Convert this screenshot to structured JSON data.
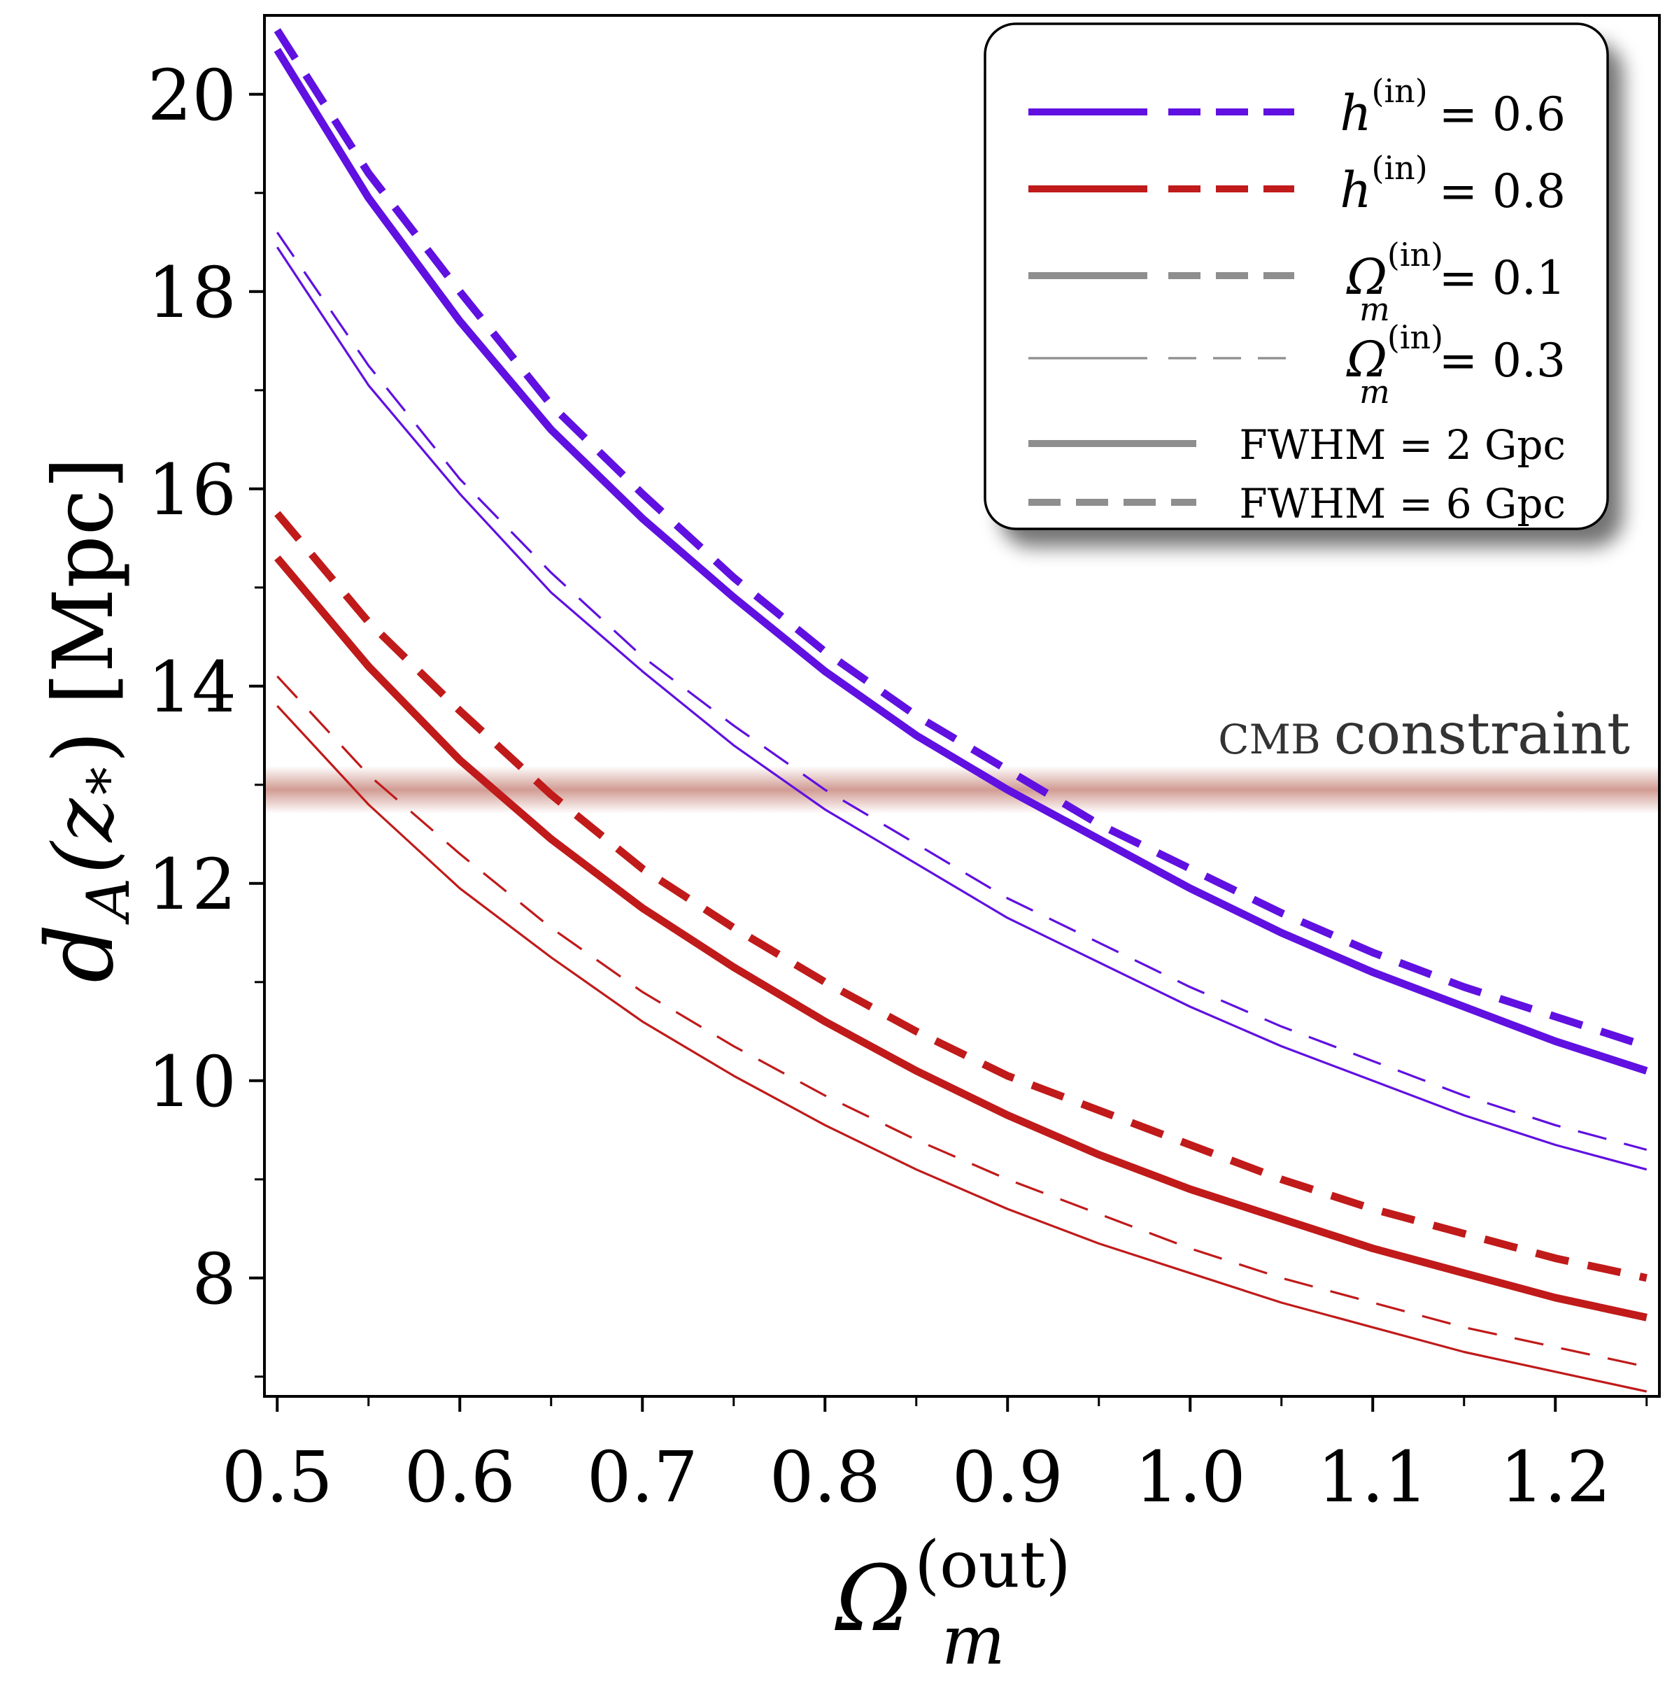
{
  "chart_data": {
    "type": "line",
    "xlabel": {
      "base": "Ω",
      "sub": "m",
      "sup": "(out)"
    },
    "ylabel": {
      "pre": "d",
      "sub": "A",
      "mid": "(z",
      "subsub": "*",
      "post": ") [Mpc]"
    },
    "xlim": [
      0.493,
      1.257
    ],
    "ylim": [
      6.8,
      20.8
    ],
    "x_ticks": [
      0.5,
      0.6,
      0.7,
      0.8,
      0.9,
      1.0,
      1.1,
      1.2
    ],
    "x_tick_labels": [
      "0.5",
      "0.6",
      "0.7",
      "0.8",
      "0.9",
      "1.0",
      "1.1",
      "1.2"
    ],
    "x_minor_ticks": [
      0.55,
      0.65,
      0.75,
      0.85,
      0.95,
      1.05,
      1.15,
      1.25
    ],
    "y_ticks": [
      8,
      10,
      12,
      14,
      16,
      18,
      20
    ],
    "y_tick_labels": [
      "8",
      "10",
      "12",
      "14",
      "16",
      "18",
      "20"
    ],
    "y_minor_ticks": [
      7,
      9,
      11,
      13,
      15,
      17,
      19
    ],
    "x": [
      0.5,
      0.55,
      0.6,
      0.65,
      0.7,
      0.75,
      0.8,
      0.85,
      0.9,
      0.95,
      1.0,
      1.05,
      1.1,
      1.15,
      1.2,
      1.25
    ],
    "series": [
      {
        "name": "h=0.6, Ωm=0.1, FWHM=2 Gpc",
        "color": "#6010e0",
        "style": "solid",
        "weight": "thick",
        "values": [
          20.45,
          18.95,
          17.7,
          16.6,
          15.7,
          14.9,
          14.15,
          13.5,
          12.95,
          12.45,
          11.95,
          11.5,
          11.1,
          10.75,
          10.4,
          10.1
        ]
      },
      {
        "name": "h=0.6, Ωm=0.1, FWHM=6 Gpc",
        "color": "#6010e0",
        "style": "dashed",
        "weight": "thick",
        "values": [
          20.65,
          19.2,
          18.0,
          16.85,
          15.95,
          15.1,
          14.35,
          13.7,
          13.15,
          12.6,
          12.15,
          11.7,
          11.3,
          10.95,
          10.65,
          10.35
        ]
      },
      {
        "name": "h=0.6, Ωm=0.3, FWHM=2 Gpc",
        "color": "#6010e0",
        "style": "solid",
        "weight": "thin",
        "values": [
          18.45,
          17.05,
          15.95,
          14.95,
          14.15,
          13.4,
          12.75,
          12.2,
          11.65,
          11.2,
          10.75,
          10.35,
          10.0,
          9.65,
          9.35,
          9.1
        ]
      },
      {
        "name": "h=0.6, Ωm=0.3, FWHM=6 Gpc",
        "color": "#6010e0",
        "style": "dashed",
        "weight": "thin",
        "values": [
          18.6,
          17.25,
          16.1,
          15.15,
          14.3,
          13.6,
          12.95,
          12.4,
          11.85,
          11.4,
          10.95,
          10.55,
          10.2,
          9.85,
          9.55,
          9.3
        ]
      },
      {
        "name": "h=0.8, Ωm=0.1, FWHM=2 Gpc",
        "color": "#c01a1a",
        "style": "solid",
        "weight": "thick",
        "values": [
          15.3,
          14.2,
          13.25,
          12.45,
          11.75,
          11.15,
          10.6,
          10.1,
          9.65,
          9.25,
          8.9,
          8.6,
          8.3,
          8.05,
          7.8,
          7.6
        ]
      },
      {
        "name": "h=0.8, Ωm=0.1, FWHM=6 Gpc",
        "color": "#c01a1a",
        "style": "dashed",
        "weight": "thick",
        "values": [
          15.75,
          14.65,
          13.75,
          12.9,
          12.15,
          11.55,
          11.0,
          10.5,
          10.05,
          9.7,
          9.35,
          9.0,
          8.7,
          8.45,
          8.2,
          8.0
        ]
      },
      {
        "name": "h=0.8, Ωm=0.3, FWHM=2 Gpc",
        "color": "#c01a1a",
        "style": "solid",
        "weight": "thin",
        "values": [
          13.8,
          12.8,
          11.95,
          11.25,
          10.6,
          10.05,
          9.55,
          9.1,
          8.7,
          8.35,
          8.05,
          7.75,
          7.5,
          7.25,
          7.05,
          6.85
        ]
      },
      {
        "name": "h=0.8, Ωm=0.3, FWHM=6 Gpc",
        "color": "#c01a1a",
        "style": "dashed",
        "weight": "thin",
        "values": [
          14.1,
          13.1,
          12.3,
          11.55,
          10.9,
          10.35,
          9.85,
          9.4,
          9.0,
          8.65,
          8.3,
          8.0,
          7.75,
          7.5,
          7.3,
          7.1
        ]
      }
    ],
    "band": {
      "label_small": "CMB",
      "label": "constraint",
      "y": 12.95,
      "color": "#c98a80"
    },
    "legend": {
      "position": "top-right",
      "entries": [
        {
          "kind": "color",
          "color": "#6010e0",
          "sym": "h",
          "sub": "",
          "sup": "(in)",
          "value": "= 0.6"
        },
        {
          "kind": "color",
          "color": "#c01a1a",
          "sym": "h",
          "sub": "",
          "sup": "(in)",
          "value": "= 0.8"
        },
        {
          "kind": "thick",
          "color": "#8e8e8e",
          "sym": "Ω",
          "sub": "m",
          "sup": "(in)",
          "value": "= 0.1"
        },
        {
          "kind": "thin",
          "color": "#8e8e8e",
          "sym": "Ω",
          "sub": "m",
          "sup": "(in)",
          "value": "= 0.3"
        },
        {
          "kind": "solid",
          "color": "#8e8e8e",
          "text": "FWHM = 2 Gpc"
        },
        {
          "kind": "dashed",
          "color": "#8e8e8e",
          "text": "FWHM = 6 Gpc"
        }
      ]
    }
  }
}
